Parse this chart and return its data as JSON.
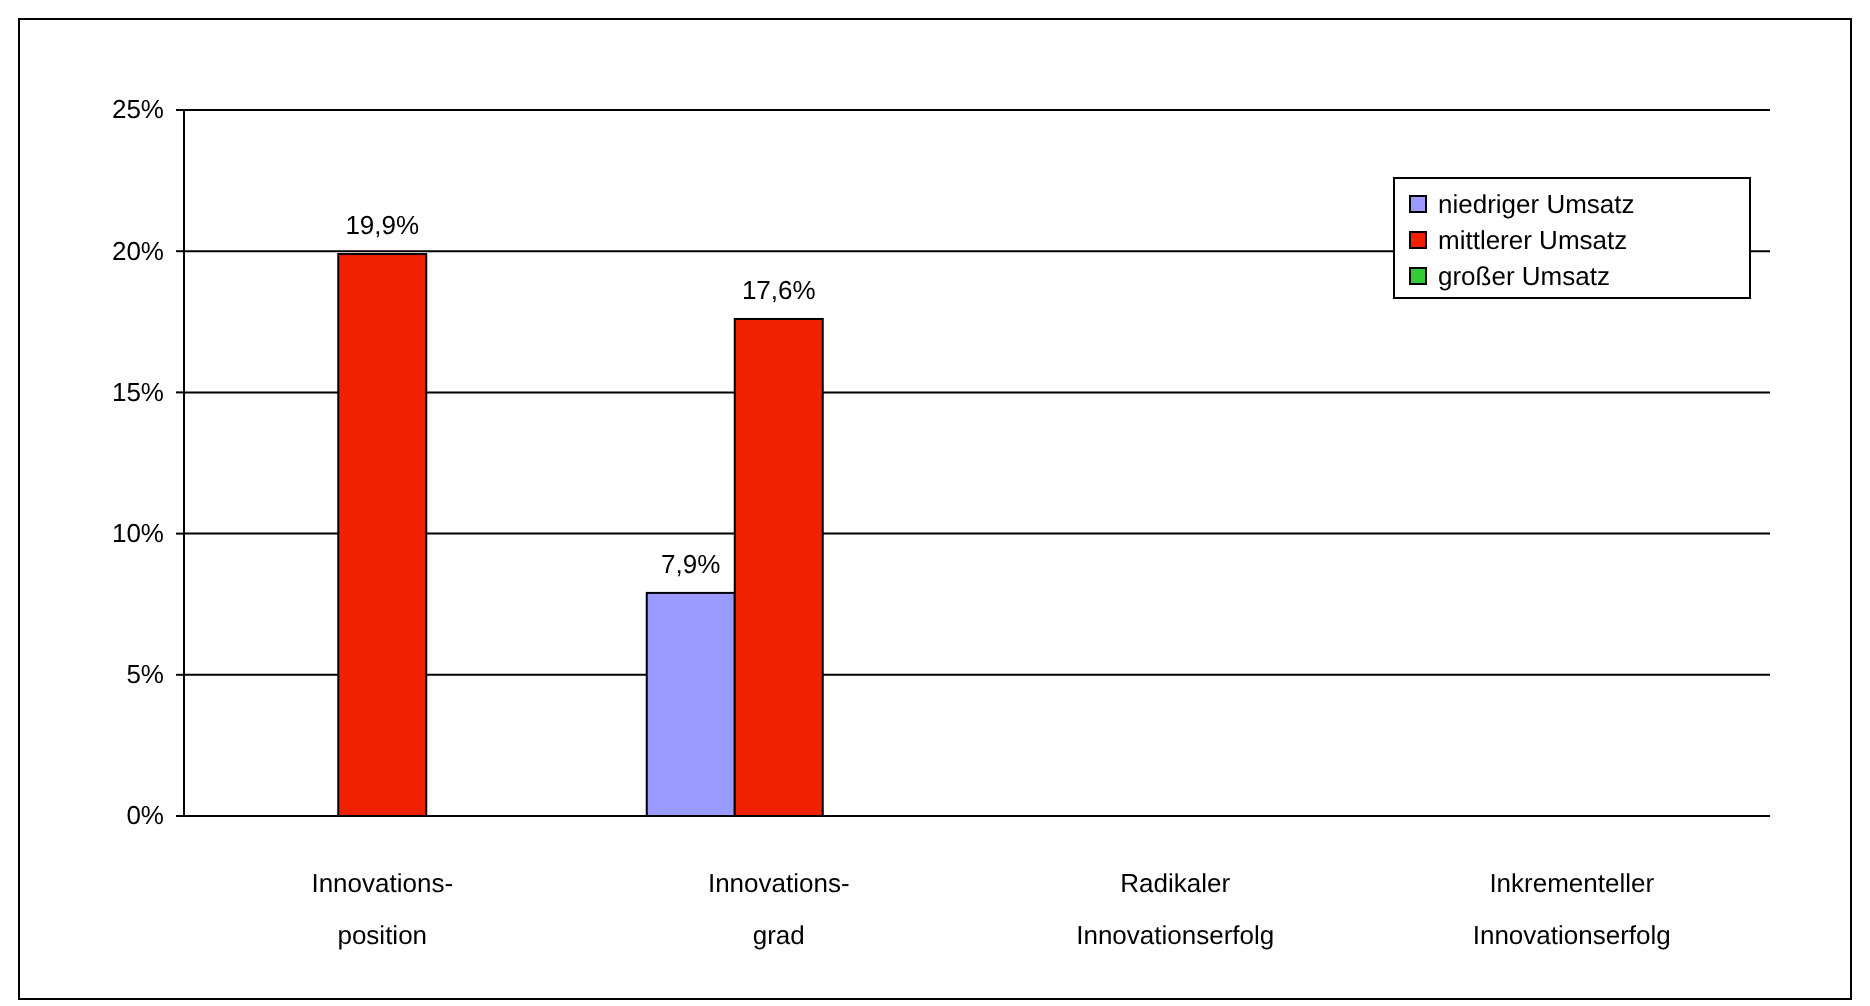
{
  "chart_data": {
    "type": "bar",
    "categories": [
      "Innovations-\nposition",
      "Innovations-\ngrad",
      "Radikaler\nInnovationserfolg",
      "Inkrementeller\nInnovationserfolg"
    ],
    "series": [
      {
        "name": "niedriger Umsatz",
        "color": "#9999ff",
        "values": [
          null,
          7.9,
          null,
          null
        ],
        "value_labels": [
          null,
          "7,9%",
          null,
          null
        ]
      },
      {
        "name": "mittlerer Umsatz",
        "color": "#ee2200",
        "values": [
          19.9,
          17.6,
          null,
          null
        ],
        "value_labels": [
          "19,9%",
          "17,6%",
          null,
          null
        ]
      },
      {
        "name": "großer Umsatz",
        "color": "#33cc33",
        "values": [
          null,
          null,
          null,
          null
        ],
        "value_labels": [
          null,
          null,
          null,
          null
        ]
      }
    ],
    "ylim": [
      0,
      25
    ],
    "yticks": [
      {
        "value": 0,
        "label": "0%"
      },
      {
        "value": 5,
        "label": "5%"
      },
      {
        "value": 10,
        "label": "10%"
      },
      {
        "value": 15,
        "label": "15%"
      },
      {
        "value": 20,
        "label": "20%"
      },
      {
        "value": 25,
        "label": "25%"
      }
    ],
    "grid": "y",
    "legend": "top right"
  }
}
